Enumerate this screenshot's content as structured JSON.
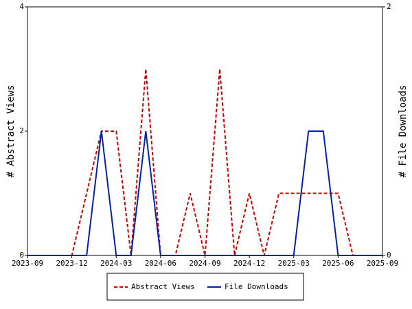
{
  "chart_data": {
    "type": "line",
    "x": [
      "2023-09",
      "2023-10",
      "2023-11",
      "2023-12",
      "2024-01",
      "2024-02",
      "2024-03",
      "2024-04",
      "2024-05",
      "2024-06",
      "2024-07",
      "2024-08",
      "2024-09",
      "2024-10",
      "2024-11",
      "2024-12",
      "2025-01",
      "2025-02",
      "2025-03",
      "2025-04",
      "2025-05",
      "2025-06",
      "2025-07",
      "2025-08",
      "2025-09"
    ],
    "xlim": [
      "2023-09",
      "2025-09"
    ],
    "xticks": [
      "2023-09",
      "2023-12",
      "2024-03",
      "2024-06",
      "2024-09",
      "2024-12",
      "2025-03",
      "2025-06",
      "2025-09"
    ],
    "ylabel": "# Abstract Views",
    "y2label": "# File Downloads",
    "ylim": [
      0,
      4
    ],
    "yticks": [
      0,
      2,
      4
    ],
    "y2lim": [
      0,
      2
    ],
    "y2ticks": [
      0,
      2
    ],
    "legend": "bottom",
    "series": [
      {
        "name": "Abstract Views",
        "color": "#cc0000",
        "dashed": true,
        "values": [
          0,
          0,
          0,
          0,
          1,
          2,
          2,
          0,
          3,
          0,
          0,
          1,
          0,
          3,
          0,
          1,
          0,
          1,
          1,
          1,
          1,
          1,
          0,
          0,
          0
        ]
      },
      {
        "name": "File Downloads",
        "color": "#0020b0",
        "dashed": false,
        "axis": "y2",
        "values": [
          0,
          0,
          0,
          0,
          0,
          1,
          0,
          0,
          1,
          0,
          0,
          0,
          0,
          0,
          0,
          0,
          0,
          0,
          0,
          1,
          1,
          0,
          0,
          0,
          0
        ]
      }
    ]
  }
}
